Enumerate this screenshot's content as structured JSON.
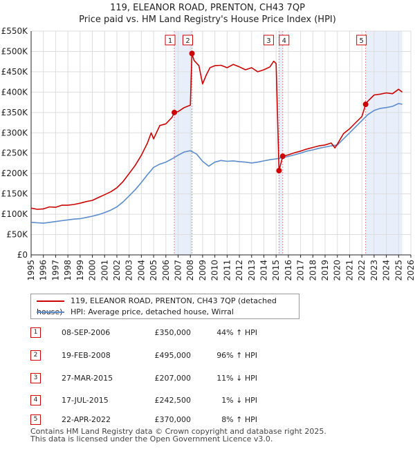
{
  "title": "119, ELEANOR ROAD, PRENTON, CH43 7QP",
  "subtitle": "Price paid vs. HM Land Registry's House Price Index (HPI)",
  "legend": {
    "property_label": "119, ELEANOR ROAD, PRENTON, CH43 7QP (detached house)",
    "hpi_label": "HPI: Average price, detached house, Wirral"
  },
  "sales": [
    {
      "num": "1",
      "date": "08-SEP-2006",
      "price": "£350,000",
      "hpi": "44% ↑ HPI"
    },
    {
      "num": "2",
      "date": "19-FEB-2008",
      "price": "£495,000",
      "hpi": "96% ↑ HPI"
    },
    {
      "num": "3",
      "date": "27-MAR-2015",
      "price": "£207,000",
      "hpi": "11% ↓ HPI"
    },
    {
      "num": "4",
      "date": "17-JUL-2015",
      "price": "£242,500",
      "hpi": "1% ↓ HPI"
    },
    {
      "num": "5",
      "date": "22-APR-2022",
      "price": "£370,000",
      "hpi": "8% ↑ HPI"
    }
  ],
  "footer": {
    "line1": "Contains HM Land Registry data © Crown copyright and database right 2025.",
    "line2": "This data is licensed under the Open Government Licence v3.0."
  },
  "colors": {
    "property_line": "#cc0000",
    "hpi_line": "#5b8ccc",
    "marker_line": "#dd8888",
    "shade": "#e8eefa",
    "grid": "#dddddd"
  },
  "chart_data": {
    "type": "line",
    "title": "119, ELEANOR ROAD, PRENTON, CH43 7QP",
    "subtitle": "Price paid vs. HM Land Registry's House Price Index (HPI)",
    "xlim": [
      1995,
      2026
    ],
    "ylim": [
      0,
      550000
    ],
    "x_ticks": [
      "1995",
      "1996",
      "1997",
      "1998",
      "1999",
      "2000",
      "2001",
      "2002",
      "2003",
      "2004",
      "2005",
      "2006",
      "2007",
      "2008",
      "2009",
      "2010",
      "2011",
      "2012",
      "2013",
      "2014",
      "2015",
      "2016",
      "2017",
      "2018",
      "2019",
      "2020",
      "2021",
      "2022",
      "2023",
      "2024",
      "2025",
      "2026"
    ],
    "y_ticks": [
      {
        "value": 0,
        "label": "£0"
      },
      {
        "value": 50000,
        "label": "£50K"
      },
      {
        "value": 100000,
        "label": "£100K"
      },
      {
        "value": 150000,
        "label": "£150K"
      },
      {
        "value": 200000,
        "label": "£200K"
      },
      {
        "value": 250000,
        "label": "£250K"
      },
      {
        "value": 300000,
        "label": "£300K"
      },
      {
        "value": 350000,
        "label": "£350K"
      },
      {
        "value": 400000,
        "label": "£400K"
      },
      {
        "value": 450000,
        "label": "£450K"
      },
      {
        "value": 500000,
        "label": "£500K"
      },
      {
        "value": 550000,
        "label": "£550K"
      }
    ],
    "grid": true,
    "legend_position": "bottom",
    "series": [
      {
        "name": "119, ELEANOR ROAD, PRENTON, CH43 7QP (detached house)",
        "points": [
          [
            1995.0,
            115000
          ],
          [
            1995.5,
            112000
          ],
          [
            1996.0,
            113000
          ],
          [
            1996.5,
            118000
          ],
          [
            1997.0,
            117000
          ],
          [
            1997.5,
            122000
          ],
          [
            1998.0,
            122000
          ],
          [
            1998.5,
            124000
          ],
          [
            1999.0,
            127000
          ],
          [
            1999.5,
            131000
          ],
          [
            2000.0,
            134000
          ],
          [
            2000.5,
            141000
          ],
          [
            2001.0,
            148000
          ],
          [
            2001.5,
            155000
          ],
          [
            2002.0,
            165000
          ],
          [
            2002.5,
            180000
          ],
          [
            2003.0,
            200000
          ],
          [
            2003.5,
            220000
          ],
          [
            2004.0,
            245000
          ],
          [
            2004.5,
            275000
          ],
          [
            2004.8,
            300000
          ],
          [
            2005.0,
            285000
          ],
          [
            2005.5,
            318000
          ],
          [
            2006.0,
            322000
          ],
          [
            2006.5,
            338000
          ],
          [
            2006.69,
            350000
          ],
          [
            2007.0,
            352000
          ],
          [
            2007.5,
            362000
          ],
          [
            2008.0,
            368000
          ],
          [
            2008.13,
            495000
          ],
          [
            2008.3,
            478000
          ],
          [
            2008.7,
            465000
          ],
          [
            2009.0,
            420000
          ],
          [
            2009.3,
            442000
          ],
          [
            2009.6,
            460000
          ],
          [
            2010.0,
            465000
          ],
          [
            2010.5,
            466000
          ],
          [
            2011.0,
            460000
          ],
          [
            2011.5,
            468000
          ],
          [
            2012.0,
            462000
          ],
          [
            2012.5,
            455000
          ],
          [
            2013.0,
            460000
          ],
          [
            2013.5,
            450000
          ],
          [
            2014.0,
            455000
          ],
          [
            2014.5,
            462000
          ],
          [
            2014.8,
            476000
          ],
          [
            2015.0,
            470000
          ],
          [
            2015.24,
            207000
          ],
          [
            2015.54,
            242500
          ],
          [
            2016.0,
            246000
          ],
          [
            2016.5,
            251000
          ],
          [
            2017.0,
            255000
          ],
          [
            2017.5,
            260000
          ],
          [
            2018.0,
            264000
          ],
          [
            2018.5,
            268000
          ],
          [
            2019.0,
            270000
          ],
          [
            2019.5,
            275000
          ],
          [
            2019.8,
            263000
          ],
          [
            2020.0,
            272000
          ],
          [
            2020.5,
            298000
          ],
          [
            2021.0,
            310000
          ],
          [
            2021.5,
            325000
          ],
          [
            2022.0,
            340000
          ],
          [
            2022.31,
            370000
          ],
          [
            2022.5,
            378000
          ],
          [
            2023.0,
            393000
          ],
          [
            2023.5,
            395000
          ],
          [
            2024.0,
            398000
          ],
          [
            2024.5,
            396000
          ],
          [
            2025.0,
            407000
          ],
          [
            2025.3,
            400000
          ]
        ]
      },
      {
        "name": "HPI: Average price, detached house, Wirral",
        "points": [
          [
            1995.0,
            80000
          ],
          [
            1995.5,
            79000
          ],
          [
            1996.0,
            78000
          ],
          [
            1996.5,
            80000
          ],
          [
            1997.0,
            82000
          ],
          [
            1997.5,
            84000
          ],
          [
            1998.0,
            86000
          ],
          [
            1998.5,
            88000
          ],
          [
            1999.0,
            89000
          ],
          [
            1999.5,
            92000
          ],
          [
            2000.0,
            95000
          ],
          [
            2000.5,
            99000
          ],
          [
            2001.0,
            104000
          ],
          [
            2001.5,
            110000
          ],
          [
            2002.0,
            118000
          ],
          [
            2002.5,
            130000
          ],
          [
            2003.0,
            145000
          ],
          [
            2003.5,
            160000
          ],
          [
            2004.0,
            178000
          ],
          [
            2004.5,
            197000
          ],
          [
            2005.0,
            215000
          ],
          [
            2005.5,
            223000
          ],
          [
            2006.0,
            228000
          ],
          [
            2006.5,
            236000
          ],
          [
            2007.0,
            245000
          ],
          [
            2007.5,
            253000
          ],
          [
            2008.0,
            256000
          ],
          [
            2008.5,
            248000
          ],
          [
            2009.0,
            230000
          ],
          [
            2009.5,
            218000
          ],
          [
            2010.0,
            228000
          ],
          [
            2010.5,
            232000
          ],
          [
            2011.0,
            230000
          ],
          [
            2011.5,
            231000
          ],
          [
            2012.0,
            229000
          ],
          [
            2012.5,
            228000
          ],
          [
            2013.0,
            226000
          ],
          [
            2013.5,
            228000
          ],
          [
            2014.0,
            231000
          ],
          [
            2014.5,
            234000
          ],
          [
            2015.0,
            236000
          ],
          [
            2015.5,
            239000
          ],
          [
            2016.0,
            242000
          ],
          [
            2016.5,
            246000
          ],
          [
            2017.0,
            250000
          ],
          [
            2017.5,
            255000
          ],
          [
            2018.0,
            258000
          ],
          [
            2018.5,
            262000
          ],
          [
            2019.0,
            265000
          ],
          [
            2019.5,
            268000
          ],
          [
            2020.0,
            270000
          ],
          [
            2020.5,
            285000
          ],
          [
            2021.0,
            300000
          ],
          [
            2021.5,
            315000
          ],
          [
            2022.0,
            330000
          ],
          [
            2022.5,
            345000
          ],
          [
            2023.0,
            355000
          ],
          [
            2023.5,
            360000
          ],
          [
            2024.0,
            362000
          ],
          [
            2024.5,
            365000
          ],
          [
            2025.0,
            372000
          ],
          [
            2025.3,
            370000
          ]
        ]
      }
    ],
    "sales": [
      {
        "label": "1",
        "x": 2006.69,
        "y": 350000
      },
      {
        "label": "2",
        "x": 2008.13,
        "y": 495000
      },
      {
        "label": "3",
        "x": 2015.24,
        "y": 207000
      },
      {
        "label": "4",
        "x": 2015.54,
        "y": 242500
      },
      {
        "label": "5",
        "x": 2022.31,
        "y": 370000
      }
    ],
    "shaded_ranges": [
      [
        2006.69,
        2008.13
      ],
      [
        2015.24,
        2015.54
      ],
      [
        2022.31,
        2025.3
      ]
    ]
  }
}
